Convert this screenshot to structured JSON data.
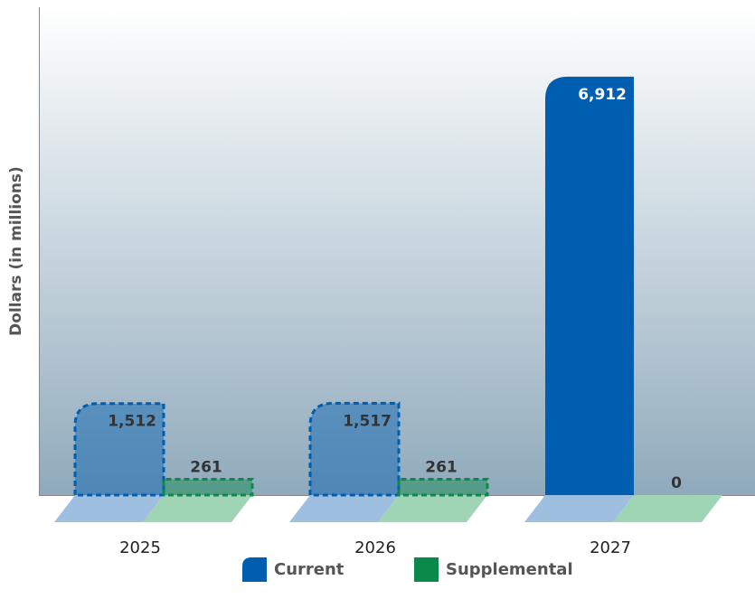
{
  "chart_data": {
    "type": "bar",
    "y_label": "Dollars (in millions)",
    "categories": [
      "2025",
      "2026",
      "2027"
    ],
    "series": [
      {
        "name": "Current",
        "color": "#005eb0",
        "floor_color": "#9ebfe0",
        "dashed": [
          true,
          true,
          false
        ],
        "values": [
          1512,
          1517,
          6912
        ],
        "value_labels": [
          "1,512",
          "1,517",
          "6,912"
        ]
      },
      {
        "name": "Supplemental",
        "color": "#0a8a4a",
        "floor_color": "#9fd4b4",
        "dashed": [
          true,
          true,
          false
        ],
        "values": [
          261,
          261,
          0
        ],
        "value_labels": [
          "261",
          "261",
          "0"
        ]
      }
    ],
    "ylim": [
      0,
      8000
    ]
  }
}
